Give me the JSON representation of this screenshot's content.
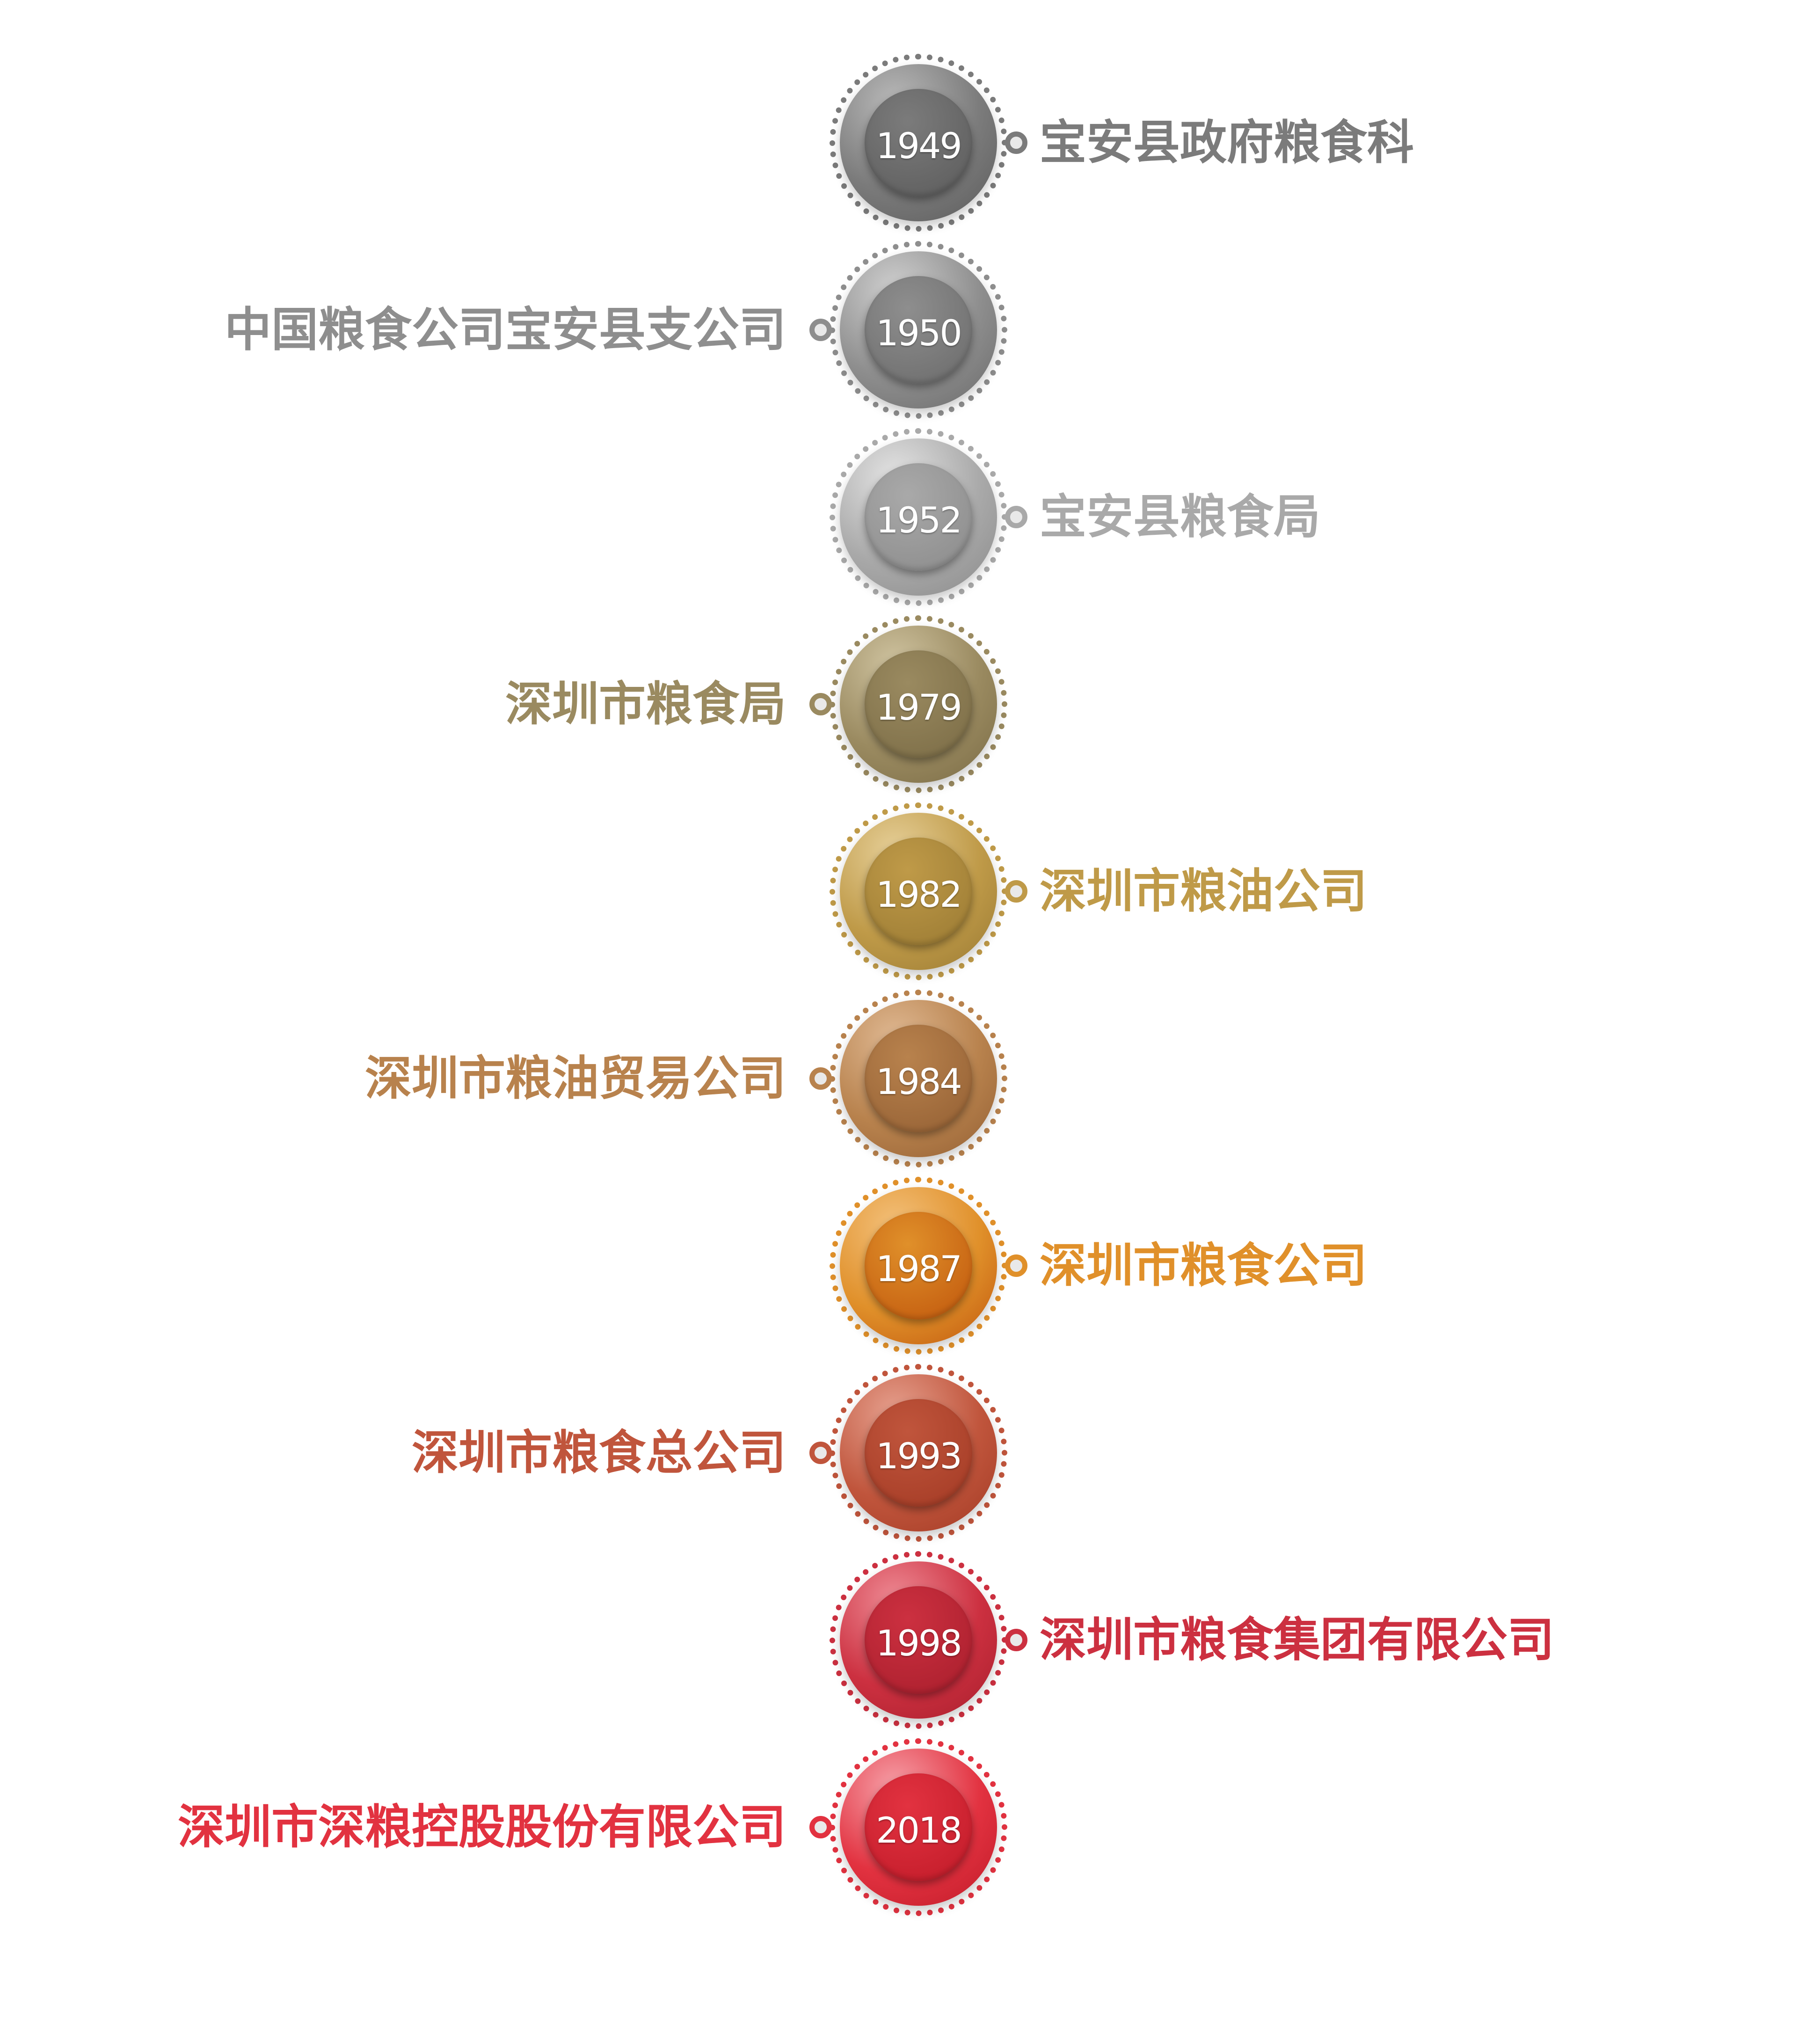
{
  "milestones": [
    {
      "year": "1949",
      "label": "宝安县政府粮食科",
      "side": "right",
      "color": "#7b7b7b",
      "light": "#b9b9b9",
      "dark": "#5b5b5b"
    },
    {
      "year": "1950",
      "label": "中国粮食公司宝安县支公司",
      "side": "left",
      "color": "#8e8e8e",
      "light": "#cfcfcf",
      "dark": "#6a6a6a"
    },
    {
      "year": "1952",
      "label": "宝安县粮食局",
      "side": "right",
      "color": "#a9a9a9",
      "light": "#e3e3e3",
      "dark": "#8a8a8a"
    },
    {
      "year": "1979",
      "label": "深圳市粮食局",
      "side": "left",
      "color": "#9a8a60",
      "light": "#cfc3a0",
      "dark": "#7a6b45"
    },
    {
      "year": "1982",
      "label": "深圳市粮油公司",
      "side": "right",
      "color": "#bf9a48",
      "light": "#e6cf98",
      "dark": "#9a7a33"
    },
    {
      "year": "1984",
      "label": "深圳市粮油贸易公司",
      "side": "left",
      "color": "#b8824d",
      "light": "#dfb892",
      "dark": "#935f33"
    },
    {
      "year": "1987",
      "label": "深圳市粮食公司",
      "side": "right",
      "color": "#e0902a",
      "light": "#f3c07a",
      "dark": "#c0560c"
    },
    {
      "year": "1993",
      "label": "深圳市粮食总公司",
      "side": "left",
      "color": "#c0553c",
      "light": "#e6a08e",
      "dark": "#a33a24"
    },
    {
      "year": "1998",
      "label": "深圳市粮食集团有限公司",
      "side": "right",
      "color": "#cc3040",
      "light": "#ee8a94",
      "dark": "#a81e2c"
    },
    {
      "year": "2018",
      "label": "深圳市深粮控股股份有限公司",
      "side": "left",
      "color": "#e23240",
      "light": "#f6a0a8",
      "dark": "#c01a28"
    }
  ]
}
